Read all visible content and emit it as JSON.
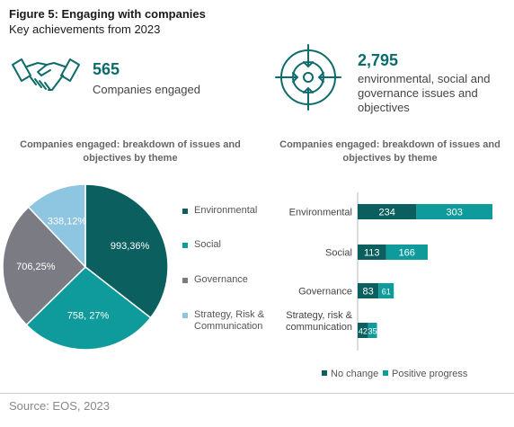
{
  "header": {
    "title": "Figure 5: Engaging with companies",
    "subtitle": "Key achievements from 2023"
  },
  "stats": [
    {
      "value": "565",
      "label": "Companies engaged",
      "icon": "handshake-icon"
    },
    {
      "value": "2,795",
      "label": "environmental, social and governance issues and objectives",
      "icon": "target-icon"
    }
  ],
  "colors": {
    "environmental": "#0b5f5f",
    "social": "#0f9b9b",
    "governance": "#7b7c83",
    "strategy": "#8ec5e0",
    "no_change": "#0b5f5f",
    "positive_progress": "#0f9b9b",
    "accent": "#0e6b6b"
  },
  "chart_data": [
    {
      "type": "pie",
      "title": "Companies engaged: breakdown of issues and objectives by theme",
      "categories": [
        "Environmental",
        "Social",
        "Governance",
        "Strategy, Risk & Communication"
      ],
      "values": [
        993,
        758,
        706,
        338
      ],
      "percent": [
        36,
        27,
        25,
        12
      ],
      "data_labels": [
        "993,36%",
        "758, 27%",
        "706,25%",
        "338,12%"
      ],
      "legend": "right"
    },
    {
      "type": "bar",
      "orientation": "horizontal",
      "stacked": true,
      "title": "Companies engaged: breakdown of issues and objectives by theme",
      "categories": [
        "Environmental",
        "Social",
        "Governance",
        "Strategy, risk & communication"
      ],
      "series": [
        {
          "name": "No change",
          "values": [
            234,
            113,
            83,
            42
          ]
        },
        {
          "name": "Positive progress",
          "values": [
            303,
            166,
            61,
            35
          ]
        }
      ],
      "data_labels": [
        [
          "234",
          "303"
        ],
        [
          "113",
          "166"
        ],
        [
          "83",
          "61"
        ],
        [
          "42",
          "35"
        ]
      ],
      "legend": "bottom"
    }
  ],
  "source": "Source: EOS, 2023"
}
